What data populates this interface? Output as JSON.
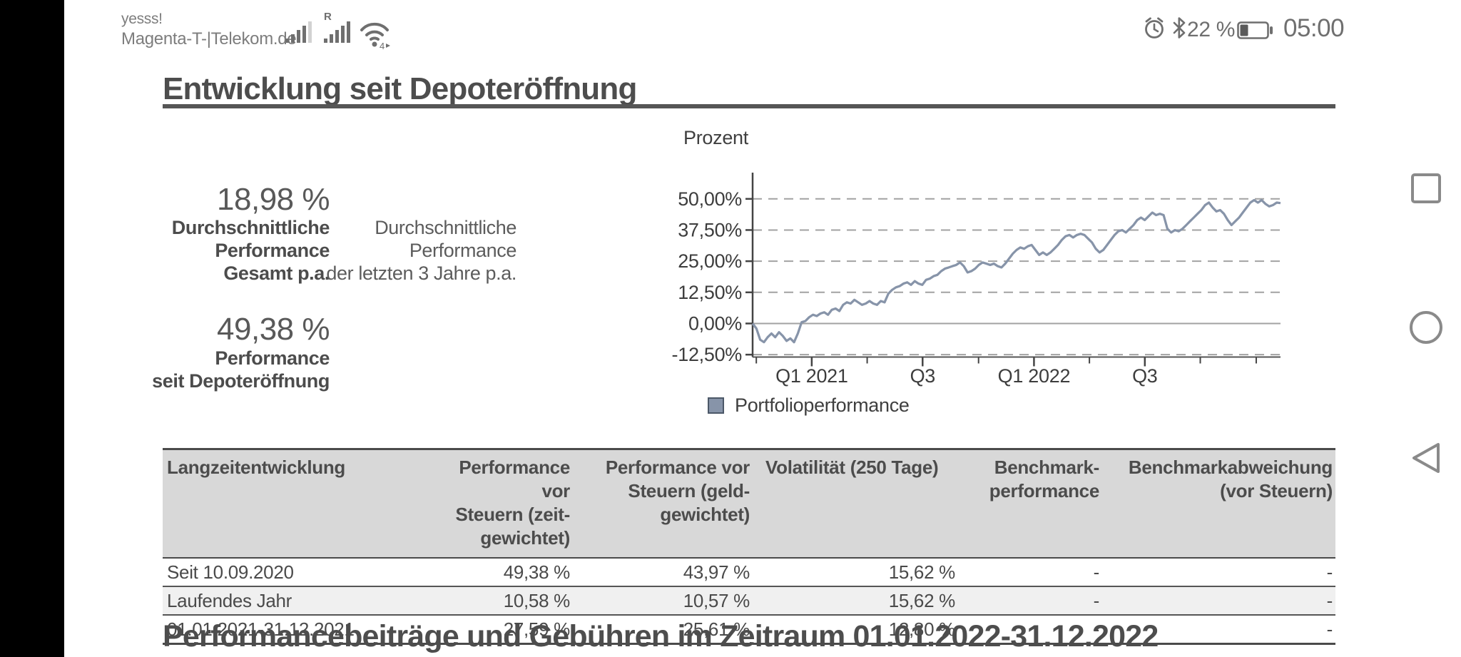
{
  "statusbar": {
    "carrier_line1": "yesss!",
    "carrier_line2": "Magenta-T-|Telekom.de",
    "roaming_indicator": "R",
    "battery_label": "22 %",
    "battery_level": 0.22,
    "time": "05:00"
  },
  "page": {
    "title": "Entwicklung seit Depoteröffnung",
    "section2_title": "Performancebeiträge und Gebühren im Zeitraum 01.01.2022-31.12.2022"
  },
  "stats": {
    "stat1_value": "18,98 %",
    "stat1_label": "Durchschnittliche\nPerformance\nGesamt p.a.",
    "stat1_note": "Durchschnittliche\nPerformance\nder letzten 3 Jahre p.a.",
    "stat2_value": "49,38 %",
    "stat2_label": "Performance\nseit Depoteröffnung"
  },
  "chart_data": {
    "type": "line",
    "title": "Prozent",
    "grid": true,
    "legend_position": "bottom",
    "line_color": "#8794a9",
    "ylim": [
      -12.6,
      61.1
    ],
    "y_ticks": [
      {
        "value": 50,
        "label": "50,00%"
      },
      {
        "value": 37.5,
        "label": "37,50%"
      },
      {
        "value": 25,
        "label": "25,00%"
      },
      {
        "value": 12.5,
        "label": "12,50%"
      },
      {
        "value": 0,
        "label": "0,00%"
      },
      {
        "value": -12.5,
        "label": "-12,50%"
      }
    ],
    "x_ticks_major": [
      {
        "pos": 0.112,
        "label": "Q1 2021"
      },
      {
        "pos": 0.322,
        "label": "Q3"
      },
      {
        "pos": 0.533,
        "label": "Q1 2022"
      },
      {
        "pos": 0.743,
        "label": "Q3"
      }
    ],
    "x_ticks_minor": [
      0.007,
      0.217,
      0.428,
      0.638,
      0.848,
      0.954
    ],
    "legend": [
      {
        "label": "Portfolioperformance",
        "color": "#8794a9"
      }
    ],
    "series": [
      {
        "name": "Portfolioperformance",
        "values": [
          0,
          -2,
          -6.5,
          -7.5,
          -5.5,
          -4,
          -5.5,
          -3.5,
          -5,
          -7,
          -6,
          -7.5,
          -4,
          0.5,
          1,
          2.5,
          3.5,
          3,
          4,
          4.5,
          3.5,
          5.5,
          6,
          5,
          7.5,
          8.5,
          8,
          9.5,
          8.5,
          7.5,
          8,
          9,
          8,
          7.5,
          9,
          8.5,
          12,
          13.5,
          14.5,
          15,
          16,
          16.5,
          15.5,
          17,
          16,
          15.5,
          17.5,
          18,
          19,
          19.5,
          21,
          22,
          22.5,
          23,
          23.5,
          24.5,
          23,
          20.5,
          21,
          22,
          23.5,
          24.5,
          24,
          23.5,
          24,
          23,
          22.5,
          24,
          26,
          28,
          29.5,
          30.5,
          30,
          31,
          31.5,
          29.5,
          27.5,
          28.5,
          27.5,
          28.5,
          30,
          31.5,
          33.5,
          35,
          35.5,
          34.5,
          35.5,
          36,
          35.5,
          34,
          32.5,
          30,
          28.5,
          29.5,
          31.5,
          33.5,
          35.5,
          37,
          37.5,
          36.5,
          38,
          39.5,
          41.5,
          42.5,
          41.5,
          43,
          44.5,
          43.5,
          44,
          43.5,
          38,
          36.5,
          37.5,
          37,
          38,
          39.5,
          41,
          42.5,
          44,
          45.5,
          47.5,
          48.5,
          46.5,
          45,
          45.5,
          44,
          41.5,
          39.5,
          41,
          42.5,
          44.5,
          46.5,
          48.5,
          49.5,
          48.5,
          49.5,
          48,
          47,
          47.5,
          48.5,
          48.3
        ]
      }
    ]
  },
  "table": {
    "header": [
      "Langzeitentwicklung",
      "Performance vor\nSteuern (zeit-\ngewichtet)",
      "Performance vor\nSteuern (geld-\ngewichtet)",
      "Volatilität (250 Tage)",
      "Benchmark-\nperformance",
      "Benchmarkabweichung\n(vor Steuern)"
    ],
    "rows": [
      [
        "Seit 10.09.2020",
        "49,38 %",
        "43,97 %",
        "15,62 %",
        "-",
        "-"
      ],
      [
        "Laufendes Jahr",
        "10,58 %",
        "10,57 %",
        "15,62 %",
        "-",
        "-"
      ],
      [
        "01.01.2021-31.12.2021",
        "27,59 %",
        "25,61 %",
        "12,80 %",
        "-",
        "-"
      ]
    ]
  },
  "nav": {
    "recents": "recents",
    "home": "home",
    "back": "back"
  }
}
